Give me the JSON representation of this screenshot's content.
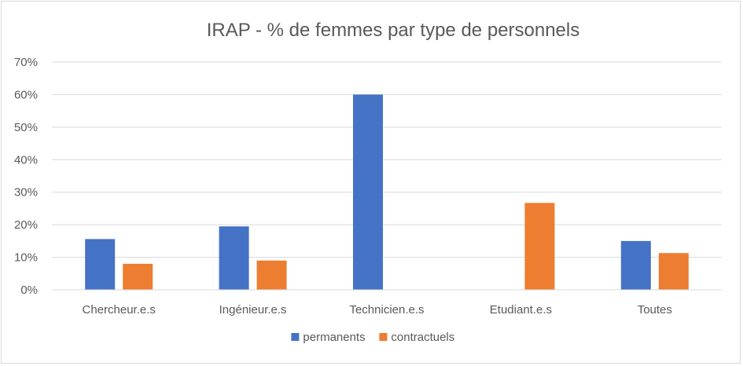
{
  "chart_data": {
    "type": "bar",
    "title": "IRAP - % de femmes par type de personnels",
    "xlabel": "",
    "ylabel": "",
    "categories": [
      "Chercheur.e.s",
      "Ingénieur.e.s",
      "Technicien.e.s",
      "Etudiant.e.s",
      "Toutes"
    ],
    "series": [
      {
        "name": "permanents",
        "color": "#4472C4",
        "values": [
          0.156,
          0.195,
          0.6,
          null,
          0.15
        ]
      },
      {
        "name": "contractuels",
        "color": "#ED7D31",
        "values": [
          0.08,
          0.09,
          null,
          0.267,
          0.113
        ]
      }
    ],
    "ylim": [
      0,
      0.7
    ],
    "yticks": [
      "0%",
      "10%",
      "20%",
      "30%",
      "40%",
      "50%",
      "60%",
      "70%"
    ],
    "grid": true,
    "legend_position": "bottom"
  }
}
